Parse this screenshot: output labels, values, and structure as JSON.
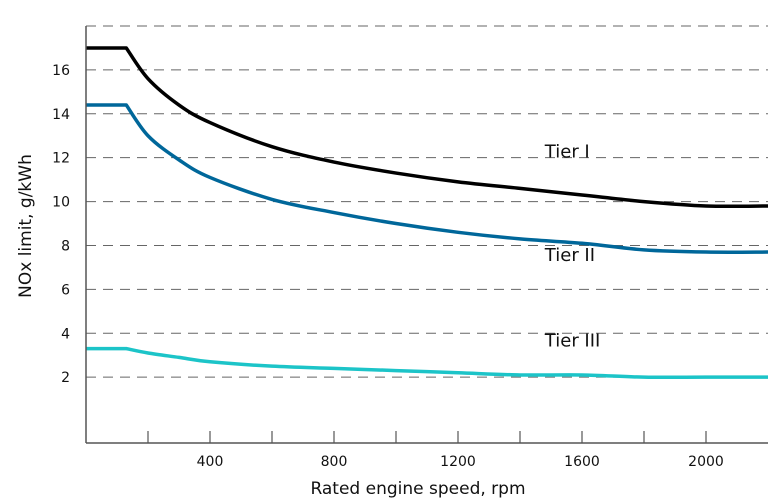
{
  "chart_data": {
    "type": "line",
    "title": "",
    "xlabel": "Rated engine speed, rpm",
    "ylabel": "NOx limit, g/kWh",
    "xlim": [
      0,
      2200
    ],
    "ylim": [
      -1,
      18
    ],
    "x_ticks": [
      200,
      400,
      600,
      800,
      1000,
      1200,
      1400,
      1600,
      1800,
      2000
    ],
    "x_tick_labels": [
      "400",
      "800",
      "1200",
      "1600",
      "2000"
    ],
    "x_tick_label_values": [
      400,
      800,
      1200,
      1600,
      2000
    ],
    "y_tick_labels": [
      "2",
      "4",
      "6",
      "8",
      "10",
      "12",
      "14",
      "16"
    ],
    "y_tick_label_values": [
      2,
      4,
      6,
      8,
      10,
      12,
      14,
      16
    ],
    "y_gridlines": [
      2,
      4,
      6,
      8,
      10,
      12,
      14,
      16,
      18
    ],
    "grid": "horizontal dashed",
    "legend": "inline labels",
    "x": [
      0,
      130,
      200,
      300,
      400,
      600,
      800,
      1000,
      1200,
      1400,
      1600,
      1800,
      2000,
      2200
    ],
    "series": [
      {
        "name": "Tier I",
        "color": "#000000",
        "values": [
          17.0,
          17.0,
          15.6,
          14.4,
          13.6,
          12.5,
          11.8,
          11.3,
          10.9,
          10.6,
          10.3,
          10.0,
          9.8,
          9.8
        ]
      },
      {
        "name": "Tier II",
        "color": "#00679a",
        "values": [
          14.4,
          14.4,
          13.0,
          11.9,
          11.1,
          10.1,
          9.5,
          9.0,
          8.6,
          8.3,
          8.1,
          7.8,
          7.7,
          7.7
        ]
      },
      {
        "name": "Tier III",
        "color": "#1cc4c8",
        "values": [
          3.3,
          3.3,
          3.1,
          2.9,
          2.7,
          2.5,
          2.4,
          2.3,
          2.2,
          2.1,
          2.1,
          2.0,
          2.0,
          2.0
        ]
      }
    ],
    "annotations": [
      {
        "text": "Tier I",
        "x": 1480,
        "y": 12.0
      },
      {
        "text": "Tier II",
        "x": 1480,
        "y": 7.3
      },
      {
        "text": "Tier III",
        "x": 1480,
        "y": 3.4
      }
    ]
  }
}
